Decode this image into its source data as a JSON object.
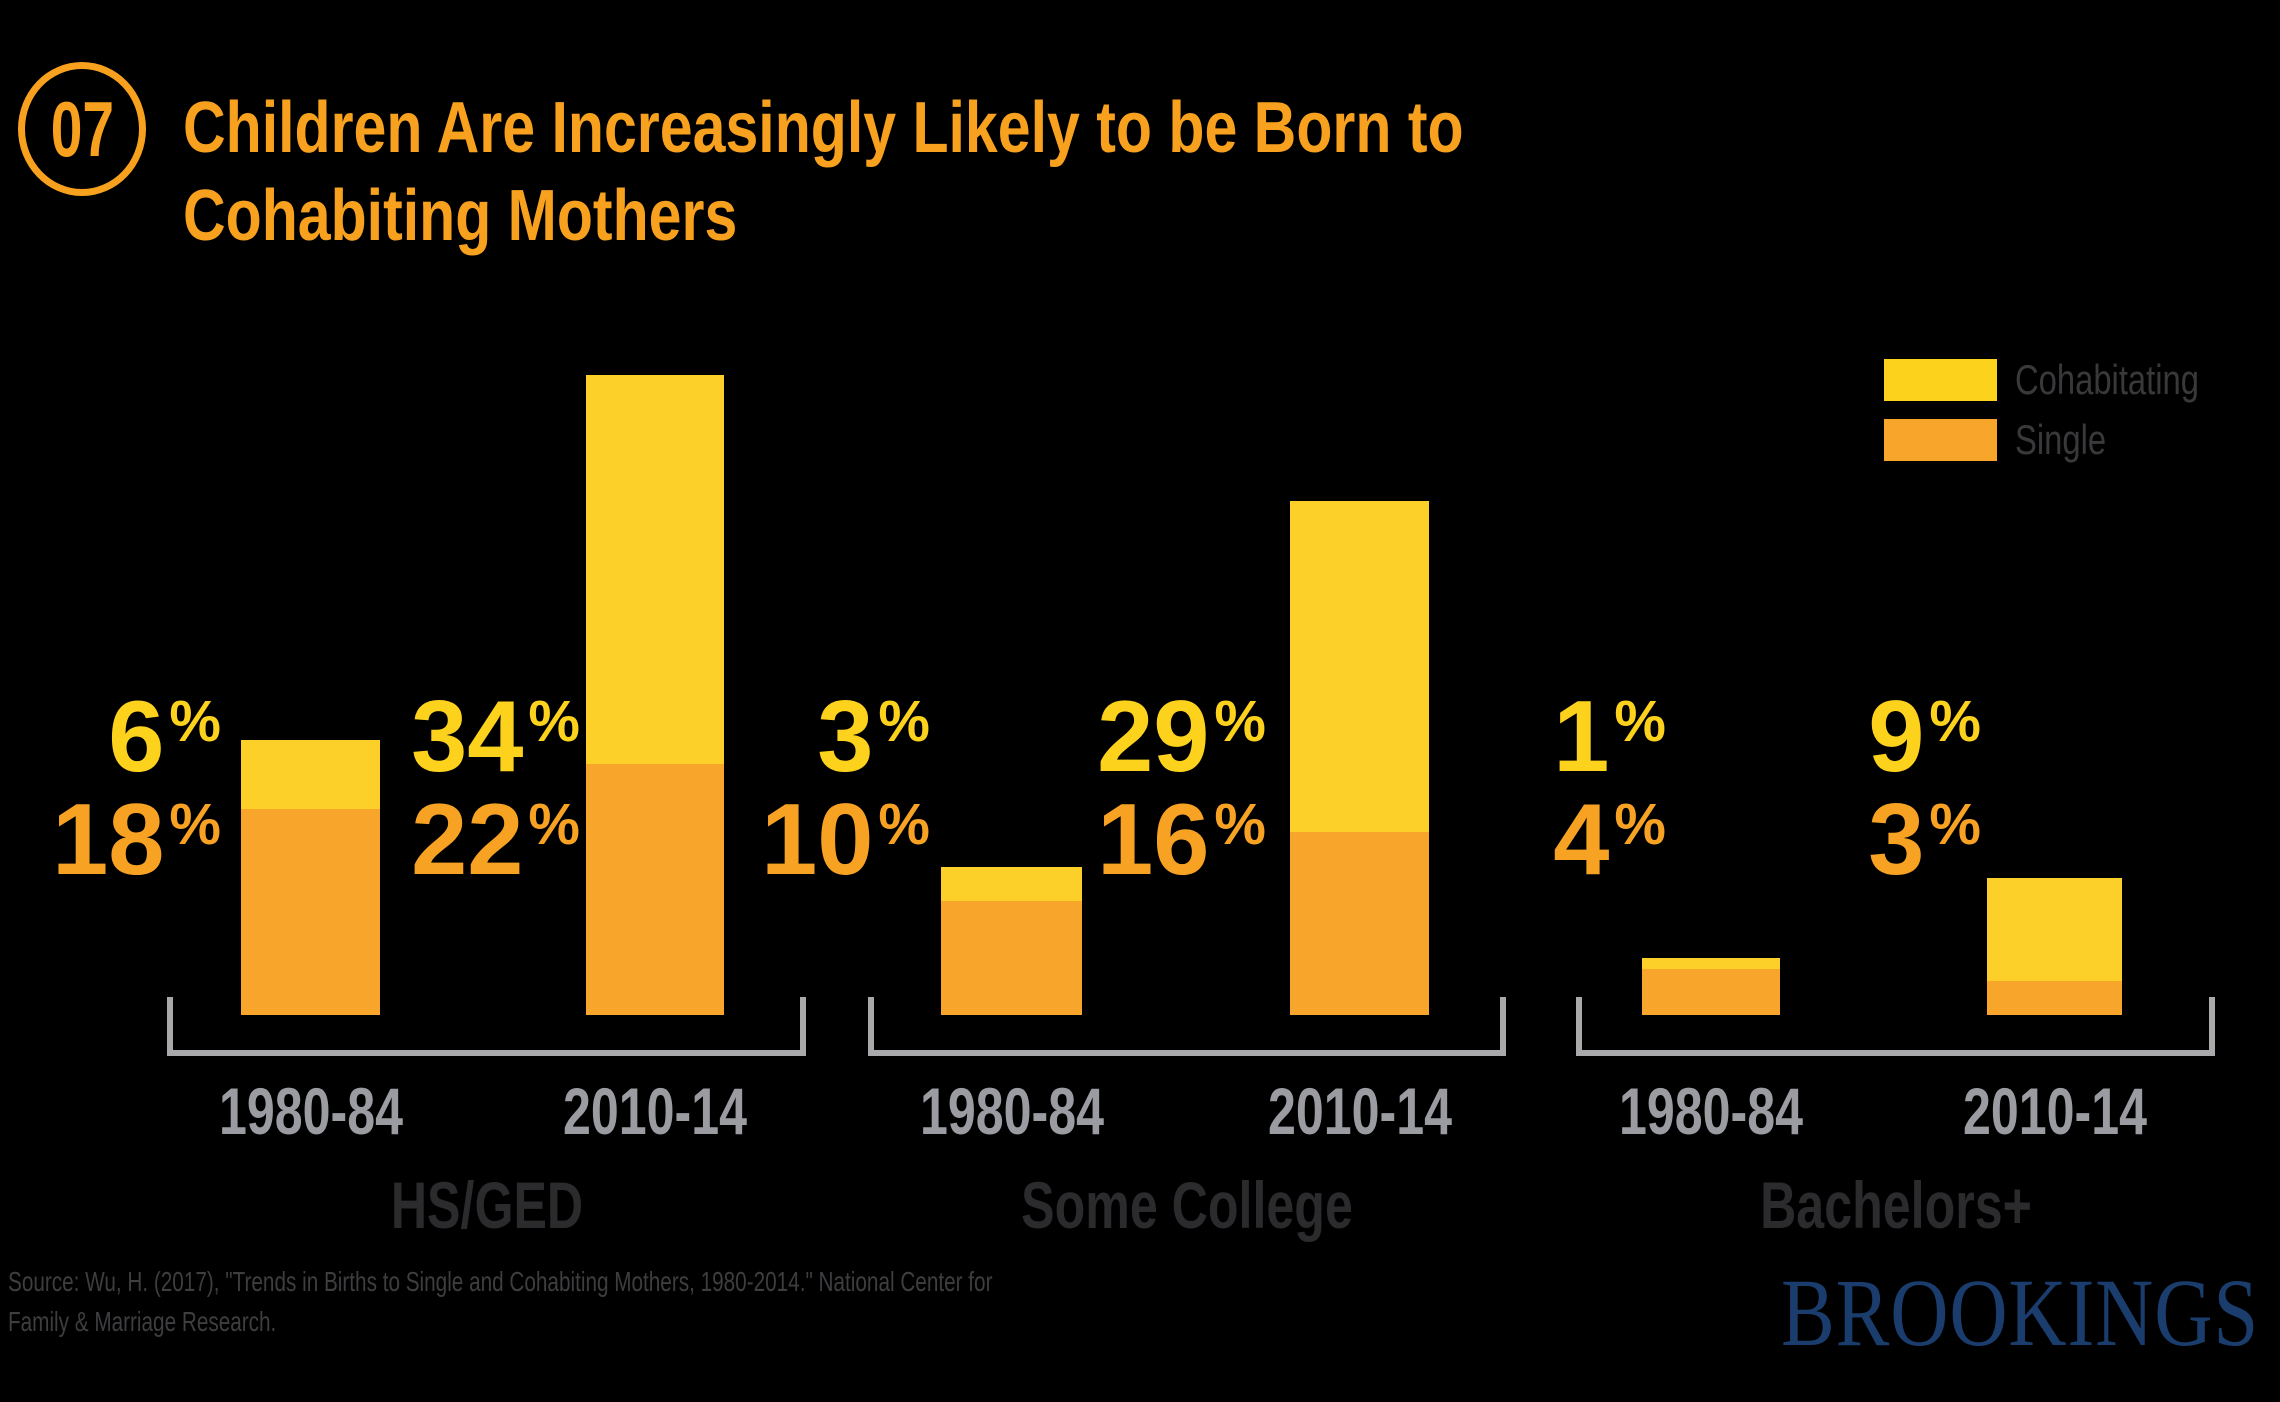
{
  "badge": {
    "number": "07"
  },
  "title": {
    "text": "Children Are Increasingly Likely to be Born to Cohabiting Mothers"
  },
  "legend": {
    "items": [
      {
        "label": "Cohabitating",
        "color": "#FDD21C"
      },
      {
        "label": "Single",
        "color": "#F8A62B"
      }
    ]
  },
  "colors": {
    "accent_orange": "#F7A11E",
    "bar_cohabitating": "#FCCF29",
    "bar_single": "#F8A62B",
    "label_cohabitating": "#FDD21C",
    "label_single": "#F8A224",
    "bracket_gray": "#A9A9AB",
    "period_label_gray": "#9B9CA1",
    "group_label_dark": "#2B2A2D",
    "source_text": "#3E3D40",
    "logo_blue": "#1B3D6D",
    "background": "#000000"
  },
  "chart_data": {
    "type": "bar",
    "stacked": true,
    "unit": "%",
    "series": [
      "Cohabitating",
      "Single"
    ],
    "legend_position": "top-right",
    "grid": false,
    "value_range": [
      0,
      56
    ],
    "groups": [
      {
        "label": "HS/GED",
        "bars": [
          {
            "period": "1980-84",
            "values": {
              "Cohabitating": 6,
              "Single": 18
            }
          },
          {
            "period": "2010-14",
            "values": {
              "Cohabitating": 34,
              "Single": 22
            }
          }
        ]
      },
      {
        "label": "Some College",
        "bars": [
          {
            "period": "1980-84",
            "values": {
              "Cohabitating": 3,
              "Single": 10
            }
          },
          {
            "period": "2010-14",
            "values": {
              "Cohabitating": 29,
              "Single": 16
            }
          }
        ]
      },
      {
        "label": "Bachelors+",
        "bars": [
          {
            "period": "1980-84",
            "values": {
              "Cohabitating": 1,
              "Single": 4
            }
          },
          {
            "period": "2010-14",
            "values": {
              "Cohabitating": 9,
              "Single": 3
            }
          }
        ]
      }
    ]
  },
  "source": {
    "lines": [
      "Source: Wu, H. (2017), \"Trends in Births to Single and Cohabiting Mothers, 1980-2014.\" National Center for",
      "Family & Marriage Research."
    ]
  },
  "logo": {
    "text": "BROOKINGS"
  }
}
